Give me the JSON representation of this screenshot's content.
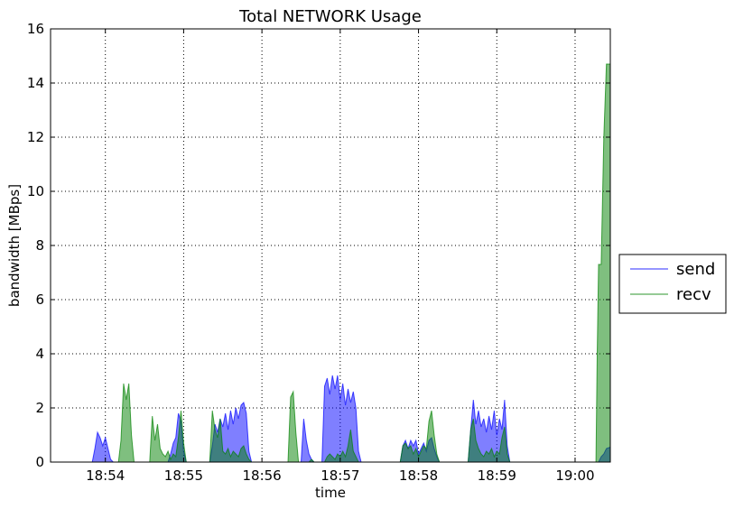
{
  "chart_data": {
    "type": "area",
    "title": "Total NETWORK Usage",
    "xlabel": "time",
    "ylabel": "bandwidth [MBps]",
    "ylim": [
      0,
      16
    ],
    "yticks": [
      0,
      2,
      4,
      6,
      8,
      10,
      12,
      14,
      16
    ],
    "xlim": [
      "18:53:18",
      "19:00:27"
    ],
    "xticks": [
      "18:54",
      "18:55",
      "18:56",
      "18:57",
      "18:58",
      "18:59",
      "19:00"
    ],
    "grid": true,
    "legend_position": "outside-right",
    "series": [
      {
        "name": "send",
        "color": "#0000ff",
        "points": [
          [
            "18:53:18",
            0.0
          ],
          [
            "18:53:50",
            0.0
          ],
          [
            "18:53:52",
            0.5
          ],
          [
            "18:53:54",
            1.1
          ],
          [
            "18:53:56",
            0.9
          ],
          [
            "18:53:58",
            0.6
          ],
          [
            "18:54:00",
            0.9
          ],
          [
            "18:54:02",
            0.5
          ],
          [
            "18:54:04",
            0.1
          ],
          [
            "18:54:06",
            0.0
          ],
          [
            "18:54:48",
            0.0
          ],
          [
            "18:54:50",
            0.3
          ],
          [
            "18:54:52",
            0.7
          ],
          [
            "18:54:54",
            0.9
          ],
          [
            "18:54:56",
            1.8
          ],
          [
            "18:54:58",
            1.5
          ],
          [
            "18:55:00",
            0.4
          ],
          [
            "18:55:02",
            0.0
          ],
          [
            "18:55:20",
            0.0
          ],
          [
            "18:55:22",
            0.6
          ],
          [
            "18:55:24",
            1.4
          ],
          [
            "18:55:26",
            1.1
          ],
          [
            "18:55:28",
            1.6
          ],
          [
            "18:55:30",
            1.3
          ],
          [
            "18:55:32",
            1.8
          ],
          [
            "18:55:34",
            1.2
          ],
          [
            "18:55:36",
            1.9
          ],
          [
            "18:55:38",
            1.4
          ],
          [
            "18:55:40",
            2.0
          ],
          [
            "18:55:42",
            1.6
          ],
          [
            "18:55:44",
            2.1
          ],
          [
            "18:55:46",
            2.2
          ],
          [
            "18:55:48",
            1.8
          ],
          [
            "18:55:50",
            0.4
          ],
          [
            "18:55:52",
            0.0
          ],
          [
            "18:56:30",
            0.0
          ],
          [
            "18:56:32",
            1.6
          ],
          [
            "18:56:34",
            0.8
          ],
          [
            "18:56:36",
            0.3
          ],
          [
            "18:56:38",
            0.1
          ],
          [
            "18:56:40",
            0.0
          ],
          [
            "18:56:46",
            0.0
          ],
          [
            "18:56:48",
            2.8
          ],
          [
            "18:56:50",
            3.1
          ],
          [
            "18:56:52",
            2.5
          ],
          [
            "18:56:54",
            3.2
          ],
          [
            "18:56:56",
            2.7
          ],
          [
            "18:56:58",
            3.2
          ],
          [
            "18:57:00",
            2.3
          ],
          [
            "18:57:02",
            2.9
          ],
          [
            "18:57:04",
            2.1
          ],
          [
            "18:57:06",
            2.7
          ],
          [
            "18:57:08",
            2.2
          ],
          [
            "18:57:10",
            2.6
          ],
          [
            "18:57:12",
            2.0
          ],
          [
            "18:57:14",
            0.4
          ],
          [
            "18:57:16",
            0.0
          ],
          [
            "18:57:46",
            0.0
          ],
          [
            "18:57:48",
            0.6
          ],
          [
            "18:57:50",
            0.8
          ],
          [
            "18:57:52",
            0.5
          ],
          [
            "18:57:54",
            0.8
          ],
          [
            "18:57:56",
            0.6
          ],
          [
            "18:57:58",
            0.8
          ],
          [
            "18:58:00",
            0.3
          ],
          [
            "18:58:02",
            0.5
          ],
          [
            "18:58:04",
            0.7
          ],
          [
            "18:58:06",
            0.4
          ],
          [
            "18:58:08",
            0.8
          ],
          [
            "18:58:10",
            0.9
          ],
          [
            "18:58:12",
            0.5
          ],
          [
            "18:58:14",
            0.2
          ],
          [
            "18:58:16",
            0.0
          ],
          [
            "18:58:38",
            0.0
          ],
          [
            "18:58:40",
            1.2
          ],
          [
            "18:58:42",
            2.3
          ],
          [
            "18:58:44",
            1.4
          ],
          [
            "18:58:46",
            1.9
          ],
          [
            "18:58:48",
            1.3
          ],
          [
            "18:58:50",
            1.6
          ],
          [
            "18:58:52",
            1.1
          ],
          [
            "18:58:54",
            1.7
          ],
          [
            "18:58:56",
            1.2
          ],
          [
            "18:58:58",
            1.9
          ],
          [
            "18:59:00",
            1.0
          ],
          [
            "18:59:02",
            1.6
          ],
          [
            "18:59:04",
            1.2
          ],
          [
            "18:59:06",
            2.3
          ],
          [
            "18:59:08",
            0.6
          ],
          [
            "18:59:10",
            0.0
          ],
          [
            "19:00:18",
            0.0
          ],
          [
            "19:00:20",
            0.2
          ],
          [
            "19:00:22",
            0.3
          ],
          [
            "19:00:24",
            0.5
          ],
          [
            "19:00:27",
            0.55
          ]
        ]
      },
      {
        "name": "recv",
        "color": "#008000",
        "points": [
          [
            "18:53:18",
            0.0
          ],
          [
            "18:54:10",
            0.0
          ],
          [
            "18:54:12",
            0.8
          ],
          [
            "18:54:14",
            2.9
          ],
          [
            "18:54:16",
            2.3
          ],
          [
            "18:54:18",
            2.9
          ],
          [
            "18:54:20",
            1.0
          ],
          [
            "18:54:22",
            0.0
          ],
          [
            "18:54:34",
            0.0
          ],
          [
            "18:54:36",
            1.7
          ],
          [
            "18:54:38",
            0.8
          ],
          [
            "18:54:40",
            1.4
          ],
          [
            "18:54:42",
            0.5
          ],
          [
            "18:54:44",
            0.3
          ],
          [
            "18:54:46",
            0.2
          ],
          [
            "18:54:48",
            0.4
          ],
          [
            "18:54:50",
            0.1
          ],
          [
            "18:54:52",
            0.3
          ],
          [
            "18:54:54",
            0.2
          ],
          [
            "18:54:56",
            0.9
          ],
          [
            "18:54:58",
            1.9
          ],
          [
            "18:55:00",
            0.7
          ],
          [
            "18:55:02",
            0.0
          ],
          [
            "18:55:20",
            0.0
          ],
          [
            "18:55:22",
            1.9
          ],
          [
            "18:55:24",
            1.2
          ],
          [
            "18:55:26",
            0.9
          ],
          [
            "18:55:28",
            1.6
          ],
          [
            "18:55:30",
            0.4
          ],
          [
            "18:55:32",
            0.3
          ],
          [
            "18:55:34",
            0.5
          ],
          [
            "18:55:36",
            0.2
          ],
          [
            "18:55:38",
            0.4
          ],
          [
            "18:55:40",
            0.3
          ],
          [
            "18:55:42",
            0.2
          ],
          [
            "18:55:44",
            0.5
          ],
          [
            "18:55:46",
            0.6
          ],
          [
            "18:55:48",
            0.3
          ],
          [
            "18:55:50",
            0.1
          ],
          [
            "18:55:52",
            0.0
          ],
          [
            "18:56:20",
            0.0
          ],
          [
            "18:56:22",
            2.4
          ],
          [
            "18:56:24",
            2.6
          ],
          [
            "18:56:26",
            1.1
          ],
          [
            "18:56:28",
            0.0
          ],
          [
            "18:56:36",
            0.0
          ],
          [
            "18:56:38",
            0.1
          ],
          [
            "18:56:40",
            0.0
          ],
          [
            "18:56:48",
            0.0
          ],
          [
            "18:56:50",
            0.2
          ],
          [
            "18:56:52",
            0.3
          ],
          [
            "18:56:54",
            0.2
          ],
          [
            "18:56:56",
            0.1
          ],
          [
            "18:56:58",
            0.3
          ],
          [
            "18:57:00",
            0.2
          ],
          [
            "18:57:02",
            0.4
          ],
          [
            "18:57:04",
            0.2
          ],
          [
            "18:57:06",
            0.6
          ],
          [
            "18:57:08",
            1.2
          ],
          [
            "18:57:10",
            0.4
          ],
          [
            "18:57:12",
            0.2
          ],
          [
            "18:57:14",
            0.0
          ],
          [
            "18:57:46",
            0.0
          ],
          [
            "18:57:48",
            0.6
          ],
          [
            "18:57:50",
            0.7
          ],
          [
            "18:57:52",
            0.5
          ],
          [
            "18:57:54",
            0.6
          ],
          [
            "18:57:56",
            0.3
          ],
          [
            "18:57:58",
            0.5
          ],
          [
            "18:58:00",
            0.2
          ],
          [
            "18:58:02",
            0.4
          ],
          [
            "18:58:04",
            0.6
          ],
          [
            "18:58:06",
            0.5
          ],
          [
            "18:58:08",
            1.5
          ],
          [
            "18:58:10",
            1.9
          ],
          [
            "18:58:12",
            1.0
          ],
          [
            "18:58:14",
            0.3
          ],
          [
            "18:58:16",
            0.0
          ],
          [
            "18:58:38",
            0.0
          ],
          [
            "18:58:40",
            1.2
          ],
          [
            "18:58:42",
            1.6
          ],
          [
            "18:58:44",
            0.8
          ],
          [
            "18:58:46",
            0.5
          ],
          [
            "18:58:48",
            0.3
          ],
          [
            "18:58:50",
            0.2
          ],
          [
            "18:58:52",
            0.4
          ],
          [
            "18:58:54",
            0.3
          ],
          [
            "18:58:56",
            0.5
          ],
          [
            "18:58:58",
            0.2
          ],
          [
            "18:59:00",
            0.4
          ],
          [
            "18:59:02",
            0.3
          ],
          [
            "18:59:04",
            0.9
          ],
          [
            "18:59:06",
            1.3
          ],
          [
            "18:59:08",
            0.3
          ],
          [
            "18:59:10",
            0.0
          ],
          [
            "19:00:16",
            0.0
          ],
          [
            "19:00:17",
            4.0
          ],
          [
            "19:00:18",
            7.3
          ],
          [
            "19:00:20",
            7.3
          ],
          [
            "19:00:22",
            12.0
          ],
          [
            "19:00:24",
            14.7
          ],
          [
            "19:00:27",
            14.7
          ]
        ]
      }
    ]
  }
}
